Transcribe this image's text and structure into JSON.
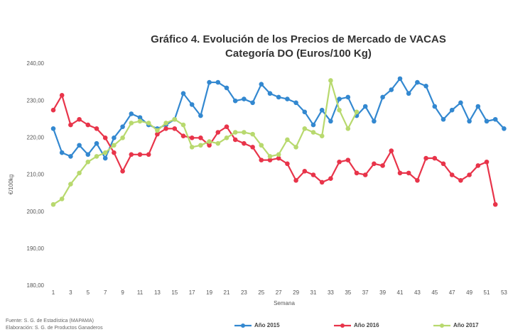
{
  "chart_data": {
    "type": "line",
    "title": "Gráfico 4. Evolución de los Precios de Mercado de VACAS",
    "subtitle": "Categoría DO (Euros/100 Kg)",
    "y_label": "€/100kg",
    "x_label": "Semana",
    "notes": [
      "Fuente: S. G. de Estadística (MAPAMA)",
      "Elaboración: S. G. de Productos Ganaderos"
    ],
    "categories": [
      1,
      null,
      3,
      null,
      5,
      null,
      7,
      null,
      9,
      null,
      11,
      null,
      13,
      null,
      15,
      null,
      17,
      null,
      19,
      null,
      21,
      null,
      23,
      null,
      25,
      null,
      27,
      null,
      29,
      null,
      31,
      null,
      33,
      null,
      35,
      null,
      37,
      null,
      39,
      null,
      41,
      null,
      43,
      null,
      45,
      null,
      47,
      null,
      49,
      null,
      51,
      null,
      53
    ],
    "ylim": [
      180,
      240
    ],
    "yticks": [
      {
        "value": 180,
        "label": "180,00"
      },
      {
        "value": 190,
        "label": "190,00"
      },
      {
        "value": 200,
        "label": "200,00"
      },
      {
        "value": 210,
        "label": "210,00"
      },
      {
        "value": 220,
        "label": "220,00"
      },
      {
        "value": 230,
        "label": "230,00"
      },
      {
        "value": 240,
        "label": "240,00"
      }
    ],
    "legend": "bottom",
    "series": [
      {
        "name": "Año 2015",
        "color": "#3388d0",
        "values": [
          222.5,
          216,
          215,
          218,
          215.5,
          218.5,
          214.5,
          220,
          223,
          226.5,
          225.5,
          223.5,
          222.5,
          223.5,
          225,
          232,
          229,
          226,
          235,
          235,
          233.5,
          230,
          230.5,
          229.5,
          234.5,
          232,
          231,
          230.5,
          229.5,
          227,
          223.5,
          227.5,
          224.5,
          230.5,
          231,
          226,
          228.5,
          224.5,
          231,
          233,
          236,
          232,
          235,
          234,
          228.5,
          225,
          227.5,
          229.5,
          224.5,
          228.5,
          224.5,
          225,
          222.5
        ]
      },
      {
        "name": "Año 2016",
        "color": "#e8344a",
        "values": [
          227.5,
          231.5,
          223.5,
          225,
          223.5,
          222.5,
          220,
          216,
          211,
          215.5,
          215.5,
          215.5,
          221,
          222.5,
          222.5,
          220.5,
          220,
          220,
          218,
          221.5,
          223,
          219.5,
          218.5,
          217.5,
          214,
          214,
          214.5,
          213,
          208.5,
          211,
          210,
          208,
          209,
          213.5,
          214,
          210.5,
          210,
          213,
          212.5,
          216.5,
          210.5,
          210.5,
          208.5,
          214.5,
          214.5,
          213,
          210,
          208.5,
          210,
          212.5,
          213.5,
          202,
          null
        ]
      },
      {
        "name": "Año 2017",
        "color": "#b8d96e",
        "values": [
          202,
          203.5,
          207.5,
          210.5,
          213.5,
          215,
          216,
          218,
          220,
          224,
          224.5,
          224,
          222,
          224,
          225,
          223.5,
          217.5,
          218,
          219,
          218.5,
          220,
          221.5,
          221.5,
          221,
          218,
          215,
          215.5,
          219.5,
          217.5,
          222.5,
          221.5,
          220.5,
          235.5,
          227.5,
          222.5,
          227,
          null,
          null,
          null,
          null,
          null,
          null,
          null,
          null,
          null,
          null,
          null,
          null,
          null,
          null,
          null,
          null,
          null
        ]
      }
    ]
  }
}
